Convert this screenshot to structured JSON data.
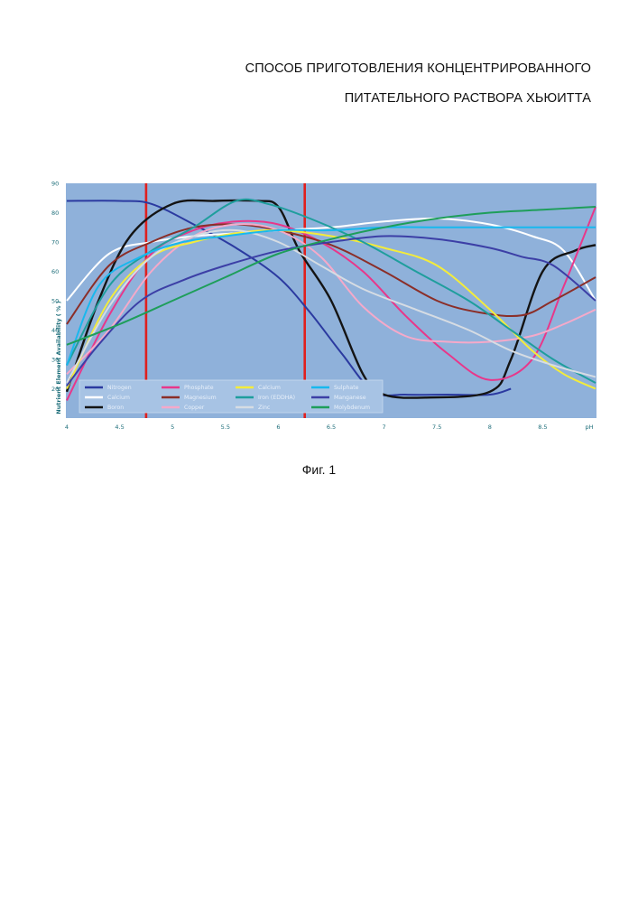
{
  "header": {
    "title_line1": "СПОСОБ ПРИГОТОВЛЕНИЯ КОНЦЕНТРИРОВАННОГО",
    "title_line2": "ПИТАТЕЛЬНОГО РАСТВОРА ХЬЮИТТА"
  },
  "figure": {
    "caption": "Фиг. 1"
  },
  "chart_data": {
    "type": "line",
    "xlabel": "pH",
    "ylabel": "Nutrient Element Availability ( % )",
    "xlim": [
      4,
      9.0
    ],
    "ylim": [
      10,
      90
    ],
    "x_ticks": [
      "4",
      "4.5",
      "5",
      "5.5",
      "6",
      "6.5",
      "7",
      "7.5",
      "8",
      "8.5",
      "pH"
    ],
    "y_ticks": [
      "90",
      "80",
      "70",
      "60",
      "50",
      "40",
      "30",
      "20"
    ],
    "grid": false,
    "background": "#8fb1da",
    "legend_position": "bottom-left",
    "reference_lines": [
      {
        "x": 4.75,
        "color": "#e0201e"
      },
      {
        "x": 6.25,
        "color": "#e0201e"
      }
    ],
    "series": [
      {
        "name": "Nitrogen",
        "color": "#2b3aa0",
        "x": [
          4.0,
          4.5,
          4.8,
          5.2,
          5.6,
          6.0,
          6.3,
          6.6,
          6.9,
          7.2,
          7.6,
          8.0,
          8.2
        ],
        "y": [
          84,
          84,
          83,
          76,
          68,
          58,
          46,
          32,
          19,
          18,
          18,
          18,
          20
        ]
      },
      {
        "name": "Calcium",
        "color": "#ffffff",
        "x": [
          4.0,
          4.4,
          4.8,
          5.2,
          5.6,
          6.0,
          6.5,
          7.0,
          7.5,
          8.0,
          8.4,
          8.7,
          9.0
        ],
        "y": [
          50,
          66,
          70,
          72,
          73,
          74,
          75,
          77,
          78,
          76,
          72,
          67,
          50
        ]
      },
      {
        "name": "Boron",
        "color": "#141414",
        "x": [
          4.0,
          4.3,
          4.6,
          5.0,
          5.4,
          5.8,
          6.0,
          6.2,
          6.5,
          6.8,
          7.0,
          7.4,
          8.0,
          8.2,
          8.5,
          8.8,
          9.0
        ],
        "y": [
          19,
          50,
          72,
          83,
          84,
          84,
          82,
          67,
          50,
          25,
          18,
          17,
          19,
          30,
          60,
          67,
          69
        ]
      },
      {
        "name": "Phosphate",
        "color": "#e8378a",
        "x": [
          4.0,
          4.4,
          4.8,
          5.2,
          5.6,
          6.0,
          6.4,
          6.8,
          7.2,
          7.6,
          8.0,
          8.4,
          8.7,
          9.0
        ],
        "y": [
          16,
          45,
          66,
          74,
          77,
          76,
          70,
          60,
          45,
          32,
          23,
          30,
          55,
          82
        ]
      },
      {
        "name": "Magnesium",
        "color": "#8b2e28",
        "x": [
          4.0,
          4.4,
          4.8,
          5.2,
          5.6,
          6.0,
          6.5,
          7.0,
          7.5,
          7.9,
          8.3,
          8.6,
          9.0
        ],
        "y": [
          42,
          62,
          70,
          75,
          76,
          74,
          69,
          60,
          50,
          46,
          45,
          50,
          58
        ]
      },
      {
        "name": "Copper",
        "color": "#f5a9c9",
        "x": [
          4.0,
          4.4,
          4.8,
          5.2,
          5.6,
          6.0,
          6.4,
          6.8,
          7.2,
          7.6,
          8.0,
          8.4,
          8.7,
          9.0
        ],
        "y": [
          25,
          40,
          60,
          72,
          76,
          74,
          65,
          48,
          38,
          36,
          36,
          38,
          42,
          47
        ]
      },
      {
        "name": "Calcium",
        "color": "#f4ec3a",
        "x": [
          4.0,
          4.4,
          4.8,
          5.2,
          5.6,
          6.0,
          6.5,
          7.0,
          7.5,
          8.0,
          8.4,
          8.7,
          9.0
        ],
        "y": [
          20,
          50,
          65,
          70,
          73,
          74,
          72,
          68,
          62,
          47,
          33,
          25,
          20
        ]
      },
      {
        "name": "Iron (EDDHA)",
        "color": "#1f9e9d",
        "x": [
          4.0,
          4.4,
          4.8,
          5.2,
          5.6,
          5.9,
          6.3,
          6.8,
          7.3,
          7.8,
          8.2,
          8.6,
          9.0
        ],
        "y": [
          28,
          55,
          67,
          75,
          84,
          83,
          78,
          70,
          60,
          50,
          40,
          30,
          22
        ]
      },
      {
        "name": "Zinc",
        "color": "#d6dce3",
        "x": [
          4.0,
          4.4,
          4.8,
          5.2,
          5.6,
          6.0,
          6.4,
          6.8,
          7.3,
          7.8,
          8.2,
          8.6,
          9.0
        ],
        "y": [
          22,
          48,
          65,
          72,
          74,
          70,
          62,
          54,
          47,
          40,
          33,
          28,
          24
        ]
      },
      {
        "name": "Sulphate",
        "color": "#18b8ee",
        "x": [
          4.0,
          4.3,
          4.7,
          5.1,
          5.5,
          6.0,
          6.5,
          7.0,
          7.5,
          8.0,
          8.5,
          9.0
        ],
        "y": [
          28,
          55,
          65,
          70,
          72,
          74,
          74,
          75,
          75,
          75,
          75,
          75
        ]
      },
      {
        "name": "Manganese",
        "color": "#3c3fa6",
        "x": [
          4.0,
          4.3,
          4.7,
          5.1,
          5.5,
          6.0,
          6.5,
          7.0,
          7.5,
          8.0,
          8.3,
          8.6,
          9.0
        ],
        "y": [
          21,
          35,
          50,
          57,
          62,
          67,
          70,
          72,
          71,
          68,
          65,
          62,
          50
        ]
      },
      {
        "name": "Molybdenum",
        "color": "#1e9e5a",
        "x": [
          4.0,
          4.5,
          5.0,
          5.5,
          6.0,
          6.5,
          7.0,
          7.5,
          8.0,
          8.5,
          9.0
        ],
        "y": [
          35,
          42,
          50,
          58,
          66,
          71,
          75,
          78,
          80,
          81,
          82
        ]
      }
    ]
  }
}
